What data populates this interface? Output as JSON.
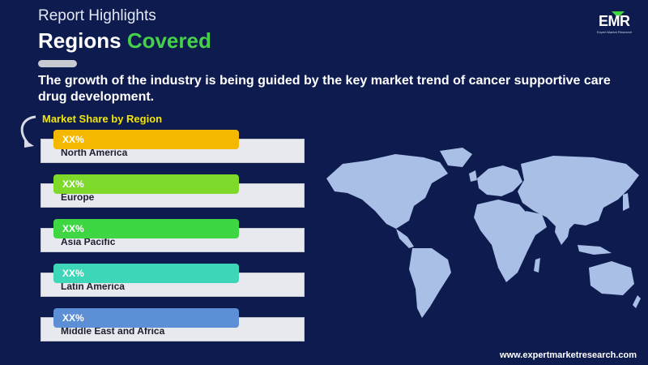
{
  "header": {
    "report_label": "Report Highlights",
    "title_main": "Regions",
    "title_accent": "Covered"
  },
  "logo": {
    "text": "EMR",
    "subtext": "Expert Market Research"
  },
  "headline": "The growth of the industry is being guided by the key market trend of cancer supportive care drug development.",
  "section_label": "Market Share by Region",
  "regions": [
    {
      "value": "XX%",
      "name": "North America",
      "color": "#f5b800"
    },
    {
      "value": "XX%",
      "name": "Europe",
      "color": "#7ed92a"
    },
    {
      "value": "XX%",
      "name": "Asia Pacific",
      "color": "#3fd644"
    },
    {
      "value": "XX%",
      "name": "Latin America",
      "color": "#3ed6b9"
    },
    {
      "value": "XX%",
      "name": "Middle East and Africa",
      "color": "#5c8fd6"
    }
  ],
  "map_color": "#a9bfe6",
  "footer_url": "www.expertmarketresearch.com"
}
